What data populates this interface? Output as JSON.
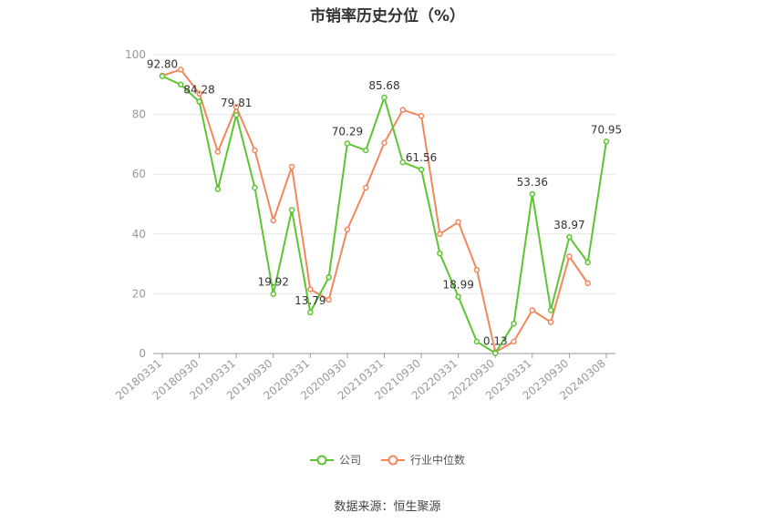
{
  "title": "市销率历史分位（%）",
  "source": "数据来源：恒生聚源",
  "legend": {
    "company": "公司",
    "industry": "行业中位数"
  },
  "colors": {
    "company": "#5cc531",
    "industry": "#f2875e",
    "axis": "#999999",
    "grid": "#e6e6e6",
    "label": "#333333"
  },
  "chart_data": {
    "type": "line",
    "title": "市销率历史分位（%）",
    "xlabel": "",
    "ylabel": "",
    "ylim": [
      0,
      100
    ],
    "yticks": [
      0,
      20,
      40,
      60,
      80,
      100
    ],
    "grid": true,
    "legend_position": "bottom",
    "x": [
      "20180331",
      "20180630",
      "20180930",
      "20181231",
      "20190331",
      "20190630",
      "20190930",
      "20191231",
      "20200331",
      "20200630",
      "20200930",
      "20201231",
      "20210331",
      "20210630",
      "20210930",
      "20211231",
      "20220331",
      "20220630",
      "20220930",
      "20221231",
      "20230331",
      "20230630",
      "20230930",
      "20231231",
      "20240308"
    ],
    "xtick_labels": [
      "20180331",
      "20180930",
      "20190331",
      "20190930",
      "20200331",
      "20200930",
      "20210331",
      "20210930",
      "20220331",
      "20220930",
      "20230331",
      "20230930",
      "20240308"
    ],
    "series": [
      {
        "name": "公司",
        "values": [
          92.8,
          90.0,
          84.28,
          55.0,
          79.81,
          55.5,
          19.92,
          48.0,
          13.79,
          25.5,
          70.29,
          68.0,
          85.68,
          64.0,
          61.56,
          33.5,
          18.99,
          4.0,
          0.13,
          10.0,
          53.36,
          14.5,
          38.97,
          30.5,
          70.95
        ],
        "labels": {
          "0": "92.80",
          "2": "84.28",
          "4": "79.81",
          "6": "19.92",
          "8": "13.79",
          "10": "70.29",
          "12": "85.68",
          "14": "61.56",
          "16": "18.99",
          "18": "0.13",
          "20": "53.36",
          "22": "38.97",
          "24": "70.95"
        }
      },
      {
        "name": "行业中位数",
        "values": [
          93.0,
          95.0,
          87.0,
          67.5,
          82.5,
          68.0,
          44.5,
          62.5,
          21.5,
          18.0,
          41.5,
          55.5,
          70.5,
          81.5,
          79.5,
          40.0,
          44.0,
          28.0,
          0.5,
          4.0,
          14.5,
          10.5,
          32.5,
          23.5,
          null
        ]
      }
    ]
  }
}
